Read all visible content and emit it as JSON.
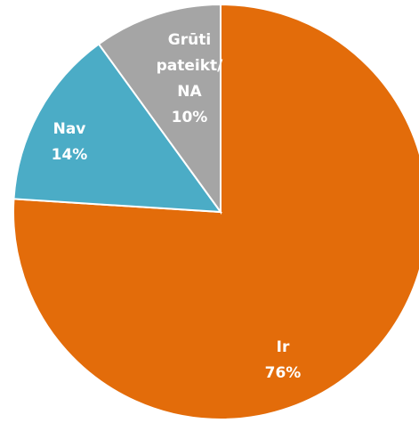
{
  "chart_data": {
    "type": "pie",
    "categories": [
      "Ir",
      "Nav",
      "Grūti pateikt/NA"
    ],
    "values": [
      76,
      14,
      10
    ],
    "value_labels": [
      "76%",
      "14%",
      "10%"
    ],
    "colors": [
      "#e36c0a",
      "#4bacc6",
      "#a5a5a5"
    ]
  }
}
